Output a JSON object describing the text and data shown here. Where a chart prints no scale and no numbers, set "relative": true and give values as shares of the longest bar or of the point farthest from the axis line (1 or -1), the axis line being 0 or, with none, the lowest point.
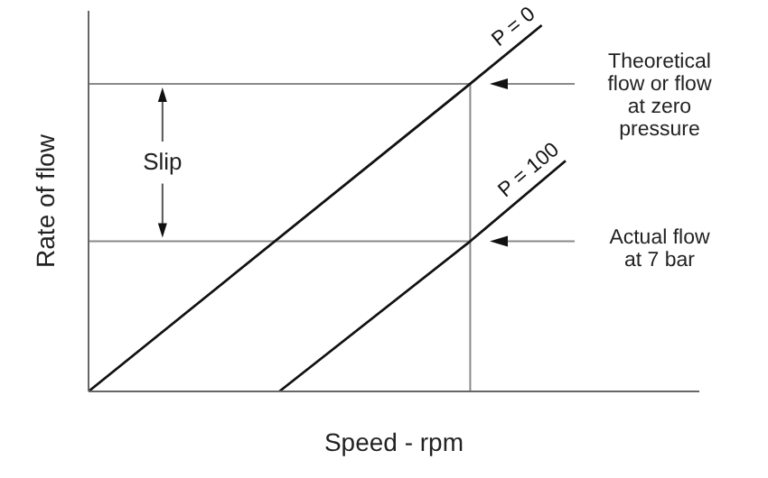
{
  "chart_data": {
    "type": "line",
    "relative": true,
    "xlabel": "Speed - rpm",
    "ylabel": "Rate of flow",
    "categories": [
      null,
      null,
      null,
      null,
      null,
      null,
      null,
      null,
      null,
      null,
      null,
      null,
      null,
      null,
      null,
      null,
      null,
      null,
      null,
      null,
      null,
      null,
      null,
      null,
      null,
      null
    ],
    "series": [
      {
        "name": "P = 0",
        "color": "#111111",
        "values": [
          0,
          null,
          null,
          null,
          null,
          null,
          null,
          null,
          null,
          null,
          null,
          null,
          null,
          null,
          null,
          null,
          0.84,
          null,
          null,
          1,
          null,
          null,
          null,
          null,
          null,
          null
        ]
      },
      {
        "name": "P = 100",
        "color": "#111111",
        "values": [
          null,
          null,
          null,
          null,
          null,
          null,
          null,
          null,
          0,
          null,
          null,
          null,
          null,
          null,
          null,
          null,
          0.41,
          null,
          null,
          null,
          0.63,
          null,
          null,
          null,
          null,
          null
        ]
      }
    ],
    "ref_lines": [
      {
        "axis": "y",
        "value": 0.84,
        "label": "Theoretical flow or flow at zero pressure",
        "color": "#8a8a8a"
      },
      {
        "axis": "y",
        "value": 0.41,
        "label": "Actual flow at 7 bar",
        "color": "#8a8a8a"
      }
    ],
    "annotations": [
      "Slip"
    ],
    "marker": "none",
    "line_style": "solid"
  }
}
